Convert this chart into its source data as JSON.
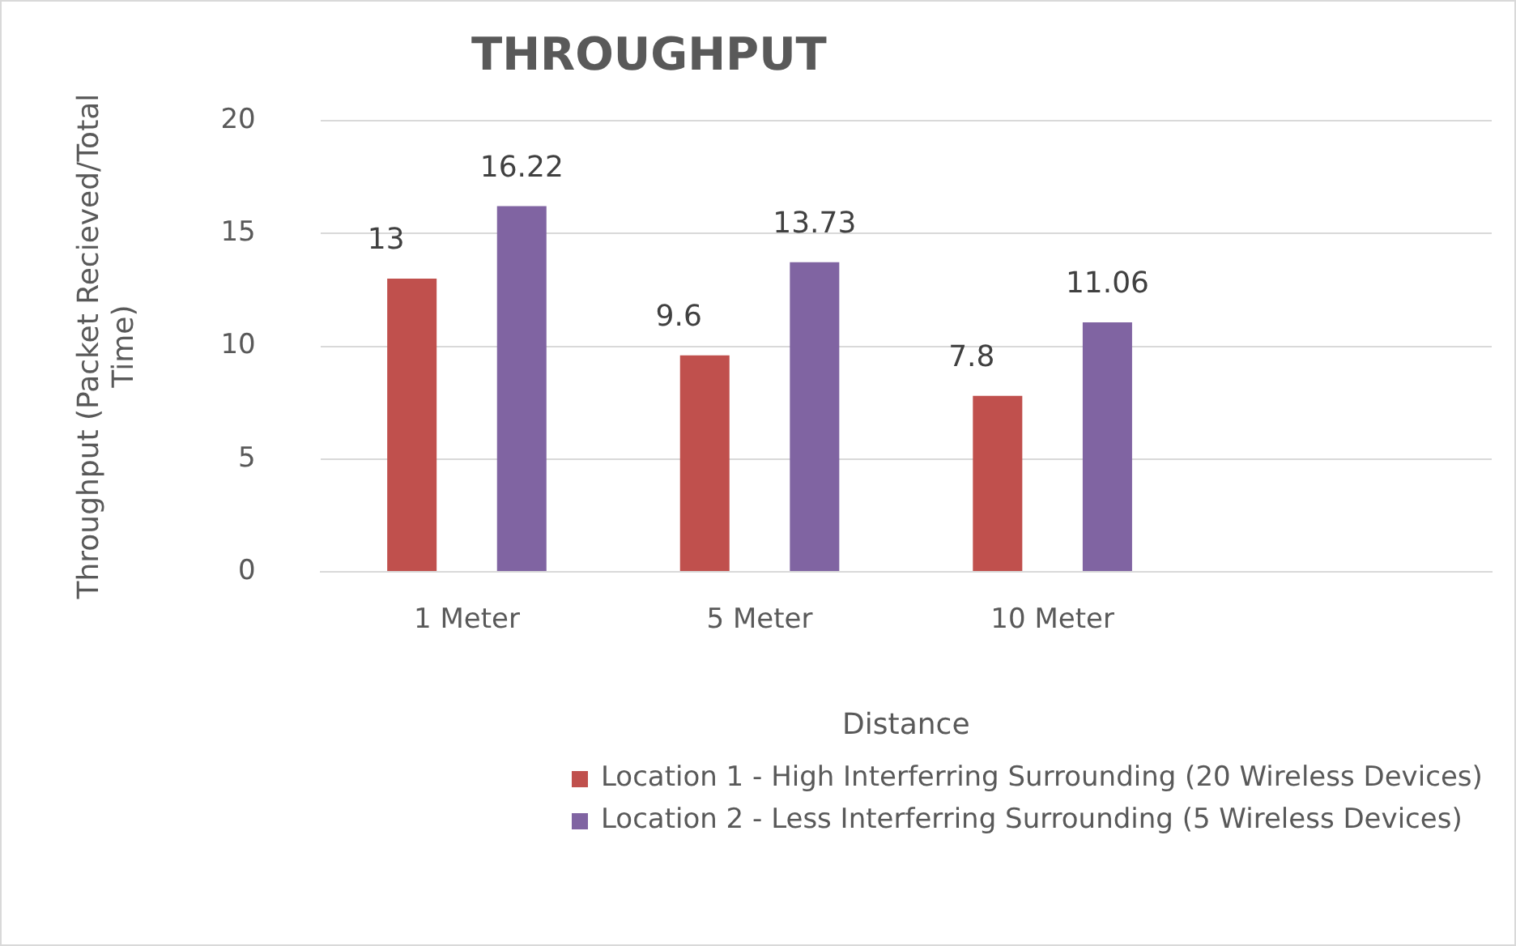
{
  "chart_data": {
    "type": "bar",
    "title": "THROUGHPUT",
    "xlabel": "Distance",
    "ylabel": "Throughput (Packet Recieved/Total Time)",
    "categories": [
      "1 Meter",
      "5 Meter",
      "10 Meter",
      null
    ],
    "series": [
      {
        "name": "Location 1 - High Interferring Surrounding (20 Wireless Devices)",
        "color": "#c0504d",
        "values": [
          13,
          9.6,
          7.8,
          null
        ]
      },
      {
        "name": "Location 2 - Less Interferring Surrounding (5 Wireless Devices)",
        "color": "#8064a2",
        "values": [
          16.22,
          13.73,
          11.06,
          null
        ]
      }
    ],
    "ylim": [
      0,
      20
    ],
    "yticks": [
      0,
      5,
      10,
      15,
      20
    ],
    "grid": "y",
    "legend": "bottom",
    "data_labels": true
  }
}
